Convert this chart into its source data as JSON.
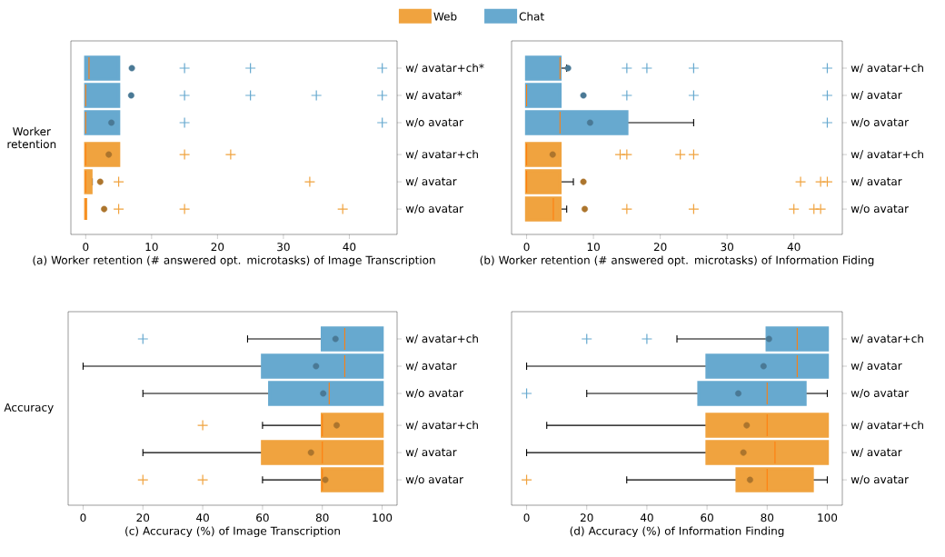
{
  "chart_data": [
    {
      "type": "box",
      "orientation": "horizontal",
      "xlabel": "(a) Worker retention (# answered opt. microtasks) of Image Transcription",
      "ylabel": "Worker retention",
      "legend": "top",
      "categories": [
        "w/ avatar+ch*",
        "w/ avatar*",
        "w/o avatar",
        "w/ avatar+ch",
        "w/ avatar",
        "w/o avatar"
      ],
      "xlim": [
        -2.25,
        47.25
      ],
      "xticks": [
        0,
        10,
        20,
        30,
        40
      ],
      "series": [
        {
          "name": "Web",
          "color": "#f0a33f",
          "boxes": [
            null,
            null,
            null,
            {
              "low": 0,
              "q1": 0,
              "median": 0,
              "q3": 5,
              "high": 5,
              "mean": 3.5,
              "outliers": [
                15,
                22
              ]
            },
            {
              "low": 0,
              "q1": 0,
              "median": 0,
              "q3": 0.8,
              "high": 1,
              "mean": 2.2,
              "outliers": [
                5,
                34
              ]
            },
            {
              "low": 0,
              "q1": 0,
              "median": 0,
              "q3": 0,
              "high": 0,
              "mean": 2.8,
              "outliers": [
                5,
                15,
                39
              ]
            }
          ]
        },
        {
          "name": "Chat",
          "color": "#67a9cf",
          "boxes": [
            {
              "low": 0,
              "q1": 0,
              "median": 0.5,
              "q3": 5,
              "high": 5,
              "mean": 7,
              "outliers": [
                15,
                25,
                45
              ]
            },
            {
              "low": 0,
              "q1": 0,
              "median": 0,
              "q3": 5,
              "high": 5,
              "mean": 6.9,
              "outliers": [
                15,
                25,
                35,
                45
              ]
            },
            {
              "low": 0,
              "q1": 0,
              "median": 0,
              "q3": 5,
              "high": 5,
              "mean": 3.9,
              "outliers": [
                15,
                45
              ]
            },
            null,
            null,
            null
          ]
        }
      ]
    },
    {
      "type": "box",
      "orientation": "horizontal",
      "xlabel": "(b) Worker retention (# answered opt. microtasks) of Information Fiding",
      "categories": [
        "w/ avatar+ch",
        "w/ avatar",
        "w/o avatar",
        "w/ avatar+ch",
        "w/ avatar",
        "w/o avatar"
      ],
      "xlim": [
        -2.25,
        47.25
      ],
      "xticks": [
        0,
        10,
        20,
        30,
        40
      ],
      "series": [
        {
          "color": "#f0a33f",
          "boxes": [
            null,
            null,
            null,
            {
              "low": 0,
              "q1": 0,
              "median": 0,
              "q3": 5,
              "high": 5,
              "mean": 3.9,
              "outliers": [
                14,
                15,
                23,
                25
              ]
            },
            {
              "low": 0,
              "q1": 0,
              "median": 0,
              "q3": 5,
              "high": 7,
              "mean": 8.5,
              "outliers": [
                41,
                44,
                45
              ]
            },
            {
              "low": 0,
              "q1": 0,
              "median": 4,
              "q3": 5,
              "high": 6,
              "mean": 8.7,
              "outliers": [
                15,
                25,
                40,
                43,
                44
              ]
            }
          ]
        },
        {
          "color": "#67a9cf",
          "boxes": [
            {
              "low": 0,
              "q1": 0,
              "median": 5,
              "q3": 5,
              "high": 6,
              "mean": 6.2,
              "outliers": [
                15,
                18,
                25,
                45
              ]
            },
            {
              "low": 0,
              "q1": 0,
              "median": 0,
              "q3": 5,
              "high": 5,
              "mean": 8.5,
              "outliers": [
                15,
                25,
                45
              ]
            },
            {
              "low": 0,
              "q1": 0,
              "median": 5,
              "q3": 15,
              "high": 25,
              "mean": 9.5,
              "outliers": [
                45
              ]
            },
            null,
            null,
            null
          ]
        }
      ]
    },
    {
      "type": "box",
      "orientation": "horizontal",
      "xlabel": "(c) Accuracy (%) of Image Transcription",
      "ylabel": "Accuracy",
      "categories": [
        "w/ avatar+ch",
        "w/ avatar",
        "w/o avatar",
        "w/ avatar+ch",
        "w/ avatar",
        "w/o avatar"
      ],
      "xlim": [
        -5,
        105
      ],
      "xticks": [
        0,
        20,
        40,
        60,
        80,
        100
      ],
      "series": [
        {
          "color": "#f0a33f",
          "boxes": [
            null,
            null,
            null,
            {
              "low": 60,
              "q1": 80,
              "median": 80,
              "q3": 100,
              "high": 100,
              "mean": 84.8,
              "outliers": [
                40
              ]
            },
            {
              "low": 20,
              "q1": 60,
              "median": 80,
              "q3": 100,
              "high": 100,
              "mean": 76.2
            },
            {
              "low": 60,
              "q1": 80,
              "median": 80,
              "q3": 100,
              "high": 100,
              "mean": 81,
              "outliers": [
                20,
                40
              ]
            }
          ]
        },
        {
          "color": "#67a9cf",
          "boxes": [
            {
              "low": 55,
              "q1": 80,
              "median": 87.5,
              "q3": 100,
              "high": 100,
              "mean": 84.4,
              "outliers": [
                20
              ]
            },
            {
              "low": 0,
              "q1": 60,
              "median": 87.5,
              "q3": 100,
              "high": 100,
              "mean": 77.9
            },
            {
              "low": 20,
              "q1": 62.4,
              "median": 82.3,
              "q3": 100,
              "high": 100,
              "mean": 80.3
            },
            null,
            null,
            null
          ]
        }
      ]
    },
    {
      "type": "box",
      "orientation": "horizontal",
      "xlabel": "(d) Accuracy (%) of Information Finding",
      "categories": [
        "w/ avatar+ch",
        "w/ avatar",
        "w/o avatar",
        "w/ avatar+ch",
        "w/ avatar",
        "w/o avatar"
      ],
      "xlim": [
        -5,
        105
      ],
      "xticks": [
        0,
        20,
        40,
        60,
        80,
        100
      ],
      "series": [
        {
          "color": "#f0a33f",
          "boxes": [
            null,
            null,
            null,
            {
              "low": 6.7,
              "q1": 60,
              "median": 80,
              "q3": 100,
              "high": 100,
              "mean": 73.2
            },
            {
              "low": 0,
              "q1": 60,
              "median": 82.6,
              "q3": 100,
              "high": 100,
              "mean": 72.1
            },
            {
              "low": 33.3,
              "q1": 70,
              "median": 80,
              "q3": 95,
              "high": 100,
              "mean": 74.3,
              "outliers": [
                0
              ]
            }
          ]
        },
        {
          "color": "#67a9cf",
          "boxes": [
            {
              "low": 50,
              "q1": 80,
              "median": 90,
              "q3": 100,
              "high": 100,
              "mean": 80.6,
              "outliers": [
                20,
                40
              ]
            },
            {
              "low": 0,
              "q1": 60,
              "median": 90,
              "q3": 100,
              "high": 100,
              "mean": 78.8
            },
            {
              "low": 20,
              "q1": 57.3,
              "median": 80,
              "q3": 92.6,
              "high": 100,
              "mean": 70.4,
              "outliers": [
                0
              ]
            },
            null,
            null,
            null
          ]
        }
      ]
    }
  ]
}
